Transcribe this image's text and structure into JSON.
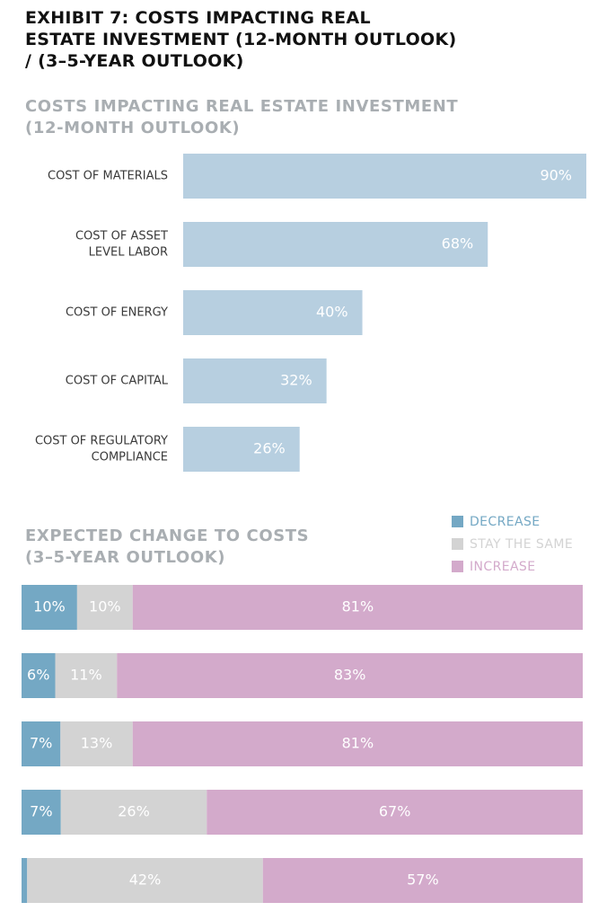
{
  "exhibit": {
    "title_lines": [
      "EXHIBIT 7: COSTS IMPACTING REAL",
      "ESTATE INVESTMENT (12-MONTH OUTLOOK)",
      "/ (3–5-YEAR OUTLOOK)"
    ]
  },
  "colors": {
    "bar_blue": "#b7cfe0",
    "decrease": "#74a8c4",
    "stay_same": "#d3d3d3",
    "increase": "#d3aacb",
    "label": "#3a3a3a",
    "title_gray": "#a9aeb2"
  },
  "chart_data": [
    {
      "type": "bar",
      "orientation": "horizontal",
      "title_lines": [
        "COSTS IMPACTING REAL ESTATE INVESTMENT",
        "(12-MONTH OUTLOOK)"
      ],
      "categories": [
        "COST OF MATERIALS",
        "COST OF ASSET LEVEL LABOR",
        "COST OF ENERGY",
        "COST OF CAPITAL",
        "COST OF REGULATORY COMPLIANCE"
      ],
      "category_lines": [
        [
          "COST OF MATERIALS"
        ],
        [
          "COST OF ASSET",
          "LEVEL LABOR"
        ],
        [
          "COST OF ENERGY"
        ],
        [
          "COST OF CAPITAL"
        ],
        [
          "COST OF REGULATORY",
          "COMPLIANCE"
        ]
      ],
      "values": [
        90,
        68,
        40,
        32,
        26
      ],
      "value_labels": [
        "90%",
        "68%",
        "40%",
        "32%",
        "26%"
      ],
      "xlim": [
        0,
        90
      ],
      "grid": false
    },
    {
      "type": "bar",
      "orientation": "horizontal",
      "stacked": true,
      "title_lines": [
        "EXPECTED CHANGE TO COSTS",
        "(3–5-YEAR OUTLOOK)"
      ],
      "legend_position": "top-right",
      "series": [
        {
          "name": "DECREASE",
          "values": [
            10,
            6,
            7,
            7,
            1
          ],
          "value_labels": [
            "10%",
            "6%",
            "7%",
            "7%",
            ""
          ]
        },
        {
          "name": "STAY THE SAME",
          "values": [
            10,
            11,
            13,
            26,
            42
          ],
          "value_labels": [
            "10%",
            "11%",
            "13%",
            "26%",
            "42%"
          ]
        },
        {
          "name": "INCREASE",
          "values": [
            81,
            83,
            81,
            67,
            57
          ],
          "value_labels": [
            "81%",
            "83%",
            "81%",
            "67%",
            "57%"
          ]
        }
      ],
      "xlim": [
        0,
        100
      ],
      "grid": false
    }
  ]
}
